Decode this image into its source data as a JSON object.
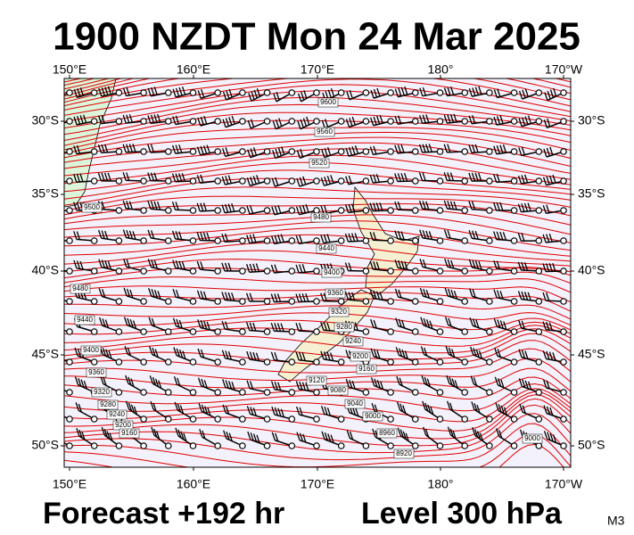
{
  "header": {
    "title": "1900 NZDT Mon 24 Mar 2025"
  },
  "map": {
    "lon_labels": [
      "150°E",
      "160°E",
      "170°E",
      "180°",
      "170°W"
    ],
    "lat_labels": [
      "30°S",
      "35°S",
      "40°S",
      "45°S",
      "50°S"
    ],
    "contour_labels": [
      "9600",
      "9560",
      "9520",
      "9500",
      "9480",
      "9440",
      "9400",
      "9480",
      "9440",
      "9400",
      "9360",
      "9320",
      "9280",
      "9240",
      "9200",
      "9160",
      "9120",
      "9080",
      "9040",
      "9000",
      "8960",
      "8920",
      "9360",
      "9320",
      "9280",
      "9240",
      "9200",
      "9160",
      "9000"
    ]
  },
  "footer": {
    "forecast": "Forecast +192 hr",
    "level": "Level 300 hPa",
    "model": "M3"
  }
}
